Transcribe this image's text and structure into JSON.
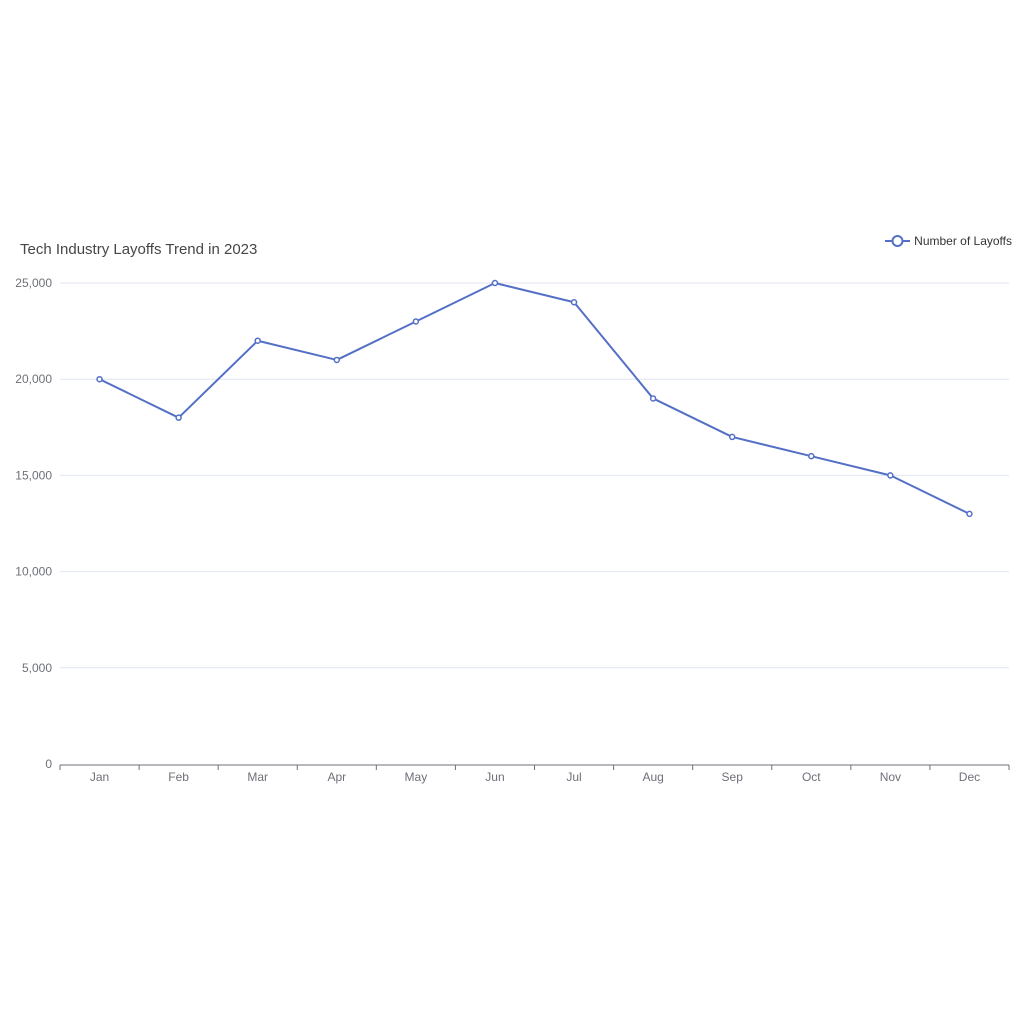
{
  "chart_data": {
    "type": "line",
    "title": "Tech Industry Layoffs Trend in 2023",
    "xlabel": "",
    "ylabel": "",
    "categories": [
      "Jan",
      "Feb",
      "Mar",
      "Apr",
      "May",
      "Jun",
      "Jul",
      "Aug",
      "Sep",
      "Oct",
      "Nov",
      "Dec"
    ],
    "series": [
      {
        "name": "Number of Layoffs",
        "values": [
          20000,
          18000,
          22000,
          21000,
          23000,
          25000,
          24000,
          19000,
          17000,
          16000,
          15000,
          13000
        ],
        "color": "#5470c6"
      }
    ],
    "ylim": [
      0,
      25000
    ],
    "yticks": [
      "0",
      "5,000",
      "10,000",
      "15,000",
      "20,000",
      "25,000"
    ],
    "grid": true,
    "legend_position": "top-right"
  }
}
